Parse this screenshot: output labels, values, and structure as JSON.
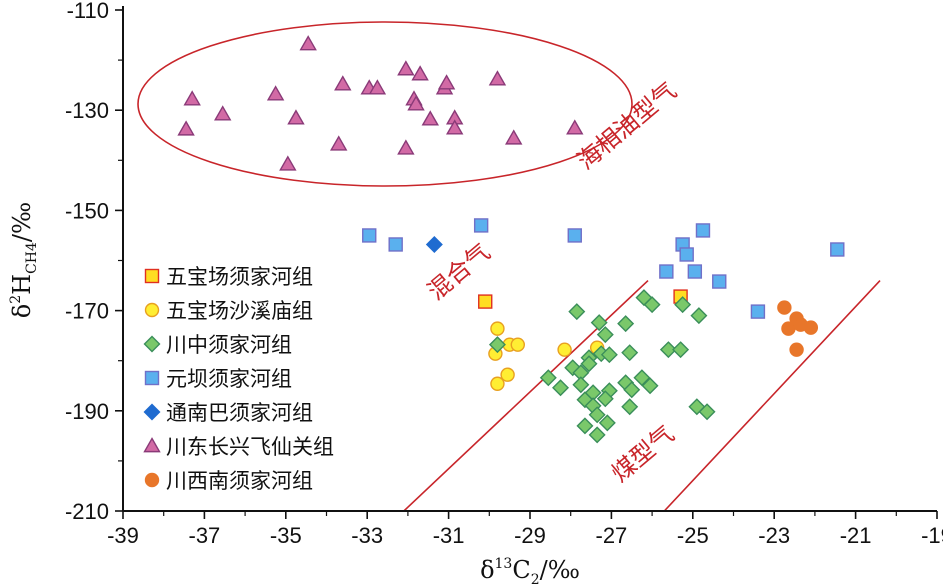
{
  "chart_data": {
    "type": "scatter",
    "xlabel": "δ13C2/‰",
    "ylabel": "δ2HCH4/‰",
    "xlim": [
      -39,
      -19
    ],
    "ylim": [
      -210,
      -110
    ],
    "x_ticks": [
      "-39",
      "-37",
      "-35",
      "-33",
      "-31",
      "-29",
      "-27",
      "-25",
      "-23",
      "-21",
      "-19"
    ],
    "y_ticks": [
      "-110",
      "-130",
      "-150",
      "-170",
      "-190",
      "-210"
    ],
    "legend_position": "lower-left",
    "annotations": {
      "marine_oil_gas": "海相油型气",
      "mixed_gas": "混合气",
      "coal_gas": "煤型气"
    },
    "series": [
      {
        "name": "五宝场须家河组",
        "marker": "square",
        "fill": "#ffdd22",
        "stroke": "#e03020",
        "points": [
          [
            -30.1,
            -168.2
          ],
          [
            -25.3,
            -167.2
          ]
        ]
      },
      {
        "name": "五宝场沙溪庙组",
        "marker": "circle",
        "fill": "#ffee33",
        "stroke": "#e8a020",
        "points": [
          [
            -29.8,
            -173.6
          ],
          [
            -29.5,
            -176.8
          ],
          [
            -29.3,
            -176.8
          ],
          [
            -29.85,
            -178.6
          ],
          [
            -28.15,
            -177.8
          ],
          [
            -27.35,
            -177.4
          ],
          [
            -29.55,
            -182.8
          ],
          [
            -29.8,
            -184.6
          ]
        ]
      },
      {
        "name": "川中须家河组",
        "marker": "diamond",
        "fill": "#7ac86a",
        "stroke": "#3a8e5a",
        "points": [
          [
            -29.8,
            -176.8
          ],
          [
            -27.85,
            -170.2
          ],
          [
            -27.3,
            -172.4
          ],
          [
            -27.15,
            -174.8
          ],
          [
            -26.65,
            -172.6
          ],
          [
            -26.2,
            -167.4
          ],
          [
            -26.0,
            -168.8
          ],
          [
            -25.25,
            -168.8
          ],
          [
            -24.85,
            -171.0
          ],
          [
            -25.6,
            -177.8
          ],
          [
            -25.3,
            -177.8
          ],
          [
            -27.55,
            -179.4
          ],
          [
            -27.25,
            -178.6
          ],
          [
            -27.05,
            -178.8
          ],
          [
            -26.55,
            -178.4
          ],
          [
            -27.95,
            -181.4
          ],
          [
            -27.55,
            -180.6
          ],
          [
            -27.75,
            -182.4
          ],
          [
            -28.55,
            -183.4
          ],
          [
            -28.25,
            -185.4
          ],
          [
            -27.75,
            -184.8
          ],
          [
            -27.45,
            -186.4
          ],
          [
            -27.05,
            -186.0
          ],
          [
            -26.65,
            -184.4
          ],
          [
            -26.25,
            -183.4
          ],
          [
            -26.05,
            -185.0
          ],
          [
            -26.5,
            -185.8
          ],
          [
            -27.65,
            -187.8
          ],
          [
            -27.45,
            -189.0
          ],
          [
            -27.15,
            -187.6
          ],
          [
            -27.35,
            -190.8
          ],
          [
            -27.1,
            -192.4
          ],
          [
            -27.65,
            -193.0
          ],
          [
            -27.35,
            -194.8
          ],
          [
            -26.55,
            -189.2
          ],
          [
            -24.9,
            -189.2
          ],
          [
            -24.65,
            -190.2
          ]
        ]
      },
      {
        "name": "元坝须家河组",
        "marker": "square",
        "fill": "#5ab0ee",
        "stroke": "#7070c8",
        "points": [
          [
            -32.95,
            -155.0
          ],
          [
            -32.3,
            -156.8
          ],
          [
            -30.2,
            -153.0
          ],
          [
            -27.9,
            -155.0
          ],
          [
            -25.25,
            -156.8
          ],
          [
            -25.15,
            -158.8
          ],
          [
            -24.75,
            -154.0
          ],
          [
            -25.65,
            -162.2
          ],
          [
            -24.95,
            -162.2
          ],
          [
            -24.35,
            -164.2
          ],
          [
            -23.4,
            -170.2
          ],
          [
            -21.45,
            -157.8
          ]
        ]
      },
      {
        "name": "通南巴须家河组",
        "marker": "diamond",
        "fill": "#1f6bd0",
        "stroke": "#1f6bd0",
        "points": [
          [
            -31.35,
            -156.8
          ]
        ]
      },
      {
        "name": "川东长兴飞仙关组",
        "marker": "triangle",
        "fill": "#d26aa5",
        "stroke": "#8a3a78",
        "points": [
          [
            -34.45,
            -116.8
          ],
          [
            -37.3,
            -127.8
          ],
          [
            -37.45,
            -133.8
          ],
          [
            -36.55,
            -130.8
          ],
          [
            -35.25,
            -126.8
          ],
          [
            -34.75,
            -131.6
          ],
          [
            -34.95,
            -140.8
          ],
          [
            -33.6,
            -124.8
          ],
          [
            -33.7,
            -136.8
          ],
          [
            -32.95,
            -125.6
          ],
          [
            -32.75,
            -125.6
          ],
          [
            -32.05,
            -121.8
          ],
          [
            -31.7,
            -122.8
          ],
          [
            -31.85,
            -127.8
          ],
          [
            -31.8,
            -128.8
          ],
          [
            -31.45,
            -131.8
          ],
          [
            -31.1,
            -125.6
          ],
          [
            -31.05,
            -124.6
          ],
          [
            -30.85,
            -131.6
          ],
          [
            -30.85,
            -133.6
          ],
          [
            -29.8,
            -123.8
          ],
          [
            -29.4,
            -135.6
          ],
          [
            -32.05,
            -137.6
          ],
          [
            -27.9,
            -133.6
          ]
        ]
      },
      {
        "name": "川西南须家河组",
        "marker": "circle",
        "fill": "#e8762a",
        "stroke": "#e8762a",
        "points": [
          [
            -22.75,
            -169.4
          ],
          [
            -22.45,
            -171.6
          ],
          [
            -22.65,
            -173.6
          ],
          [
            -22.35,
            -172.8
          ],
          [
            -22.1,
            -173.4
          ],
          [
            -22.45,
            -177.8
          ]
        ]
      }
    ]
  }
}
